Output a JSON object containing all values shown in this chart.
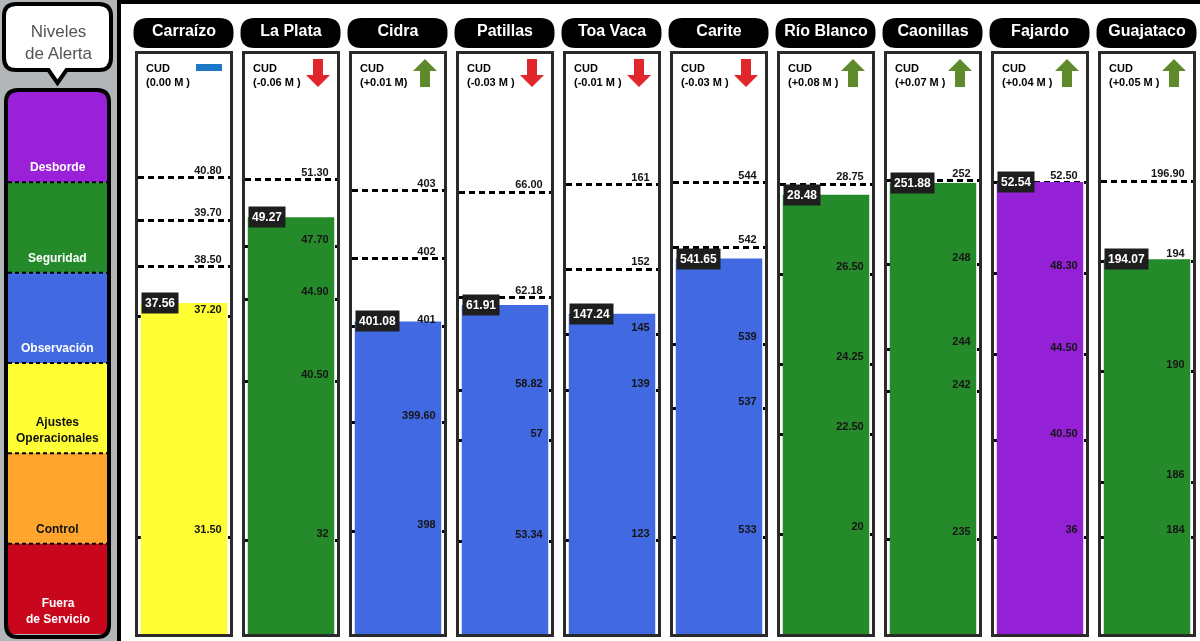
{
  "chart_data": [
    {
      "type": "other",
      "title": "Niveles\nde Alerta",
      "categories": [
        "Desborde",
        "Seguridad",
        "Observación",
        "Ajustes\nOperacionales",
        "Control",
        "Fuera\nde Servicio"
      ],
      "colors": [
        "#9b21d8",
        "#258a2a",
        "#4169e1",
        "#ffff33",
        "#ffa42c",
        "#c8061c"
      ]
    },
    {
      "type": "bar",
      "categories": [
        "Carraízo"
      ],
      "values": [
        37.56
      ],
      "colors": [
        "#ffff33"
      ],
      "data_labels": true,
      "grid": "y",
      "ylim": [
        29,
        44
      ],
      "yticks": [
        {
          "value": 31.5,
          "label": "31.50"
        },
        {
          "value": 37.2,
          "label": "37.20"
        },
        {
          "value": 38.5,
          "label": "38.50"
        },
        {
          "value": 39.7,
          "label": "39.70"
        },
        {
          "value": 40.8,
          "label": "40.80"
        }
      ],
      "annotations": [
        "CUD\n(0.00 M )"
      ]
    },
    {
      "type": "bar",
      "categories": [
        "La Plata"
      ],
      "values": [
        49.27
      ],
      "colors": [
        "#258a2a"
      ],
      "data_labels": true,
      "grid": "y",
      "ylim": [
        27,
        58
      ],
      "yticks": [
        32,
        {
          "value": 40.5,
          "label": "40.50"
        },
        {
          "value": 44.9,
          "label": "44.90"
        },
        {
          "value": 47.7,
          "label": "47.70"
        },
        {
          "value": 51.3,
          "label": "51.30"
        }
      ],
      "annotations": [
        "CUD\n(-0.06 M )"
      ]
    },
    {
      "type": "bar",
      "categories": [
        "Cidra"
      ],
      "values": [
        401.08
      ],
      "colors": [
        "#4169e1"
      ],
      "data_labels": true,
      "grid": "y",
      "ylim": [
        396.5,
        405
      ],
      "yticks": [
        398,
        {
          "value": 399.6,
          "label": "399.60"
        },
        401,
        402,
        403
      ],
      "annotations": [
        "CUD\n(+0.01 M)"
      ]
    },
    {
      "type": "bar",
      "categories": [
        "Patillas"
      ],
      "values": [
        61.91
      ],
      "colors": [
        "#4169e1"
      ],
      "data_labels": true,
      "grid": "y",
      "ylim": [
        50,
        71
      ],
      "yticks": [
        53.34,
        57,
        58.82,
        62.18,
        {
          "value": 66,
          "label": "66.00"
        }
      ],
      "annotations": [
        "CUD\n(-0.03 M )"
      ]
    },
    {
      "type": "bar",
      "categories": [
        "Toa Vaca"
      ],
      "values": [
        147.24
      ],
      "colors": [
        "#4169e1"
      ],
      "data_labels": true,
      "grid": "y",
      "ylim": [
        113,
        175
      ],
      "yticks": [
        123,
        139,
        145,
        152,
        161
      ],
      "annotations": [
        "CUD\n(-0.01 M )"
      ]
    },
    {
      "type": "bar",
      "categories": [
        "Carite"
      ],
      "values": [
        541.65
      ],
      "colors": [
        "#4169e1"
      ],
      "data_labels": true,
      "grid": "y",
      "ylim": [
        530,
        548
      ],
      "yticks": [
        533,
        537,
        539,
        542,
        544
      ],
      "annotations": [
        "CUD\n(-0.03 M )"
      ]
    },
    {
      "type": "bar",
      "categories": [
        "Río Blanco"
      ],
      "values": [
        28.48
      ],
      "colors": [
        "#258a2a"
      ],
      "data_labels": true,
      "grid": "y",
      "ylim": [
        17.5,
        32
      ],
      "yticks": [
        20,
        {
          "value": 22.5,
          "label": "22.50"
        },
        24.25,
        {
          "value": 26.5,
          "label": "26.50"
        },
        28.75
      ],
      "annotations": [
        "CUD\n(+0.08 M )"
      ]
    },
    {
      "type": "bar",
      "categories": [
        "Caonillas"
      ],
      "values": [
        251.88
      ],
      "colors": [
        "#258a2a"
      ],
      "data_labels": true,
      "grid": "y",
      "ylim": [
        230.5,
        258
      ],
      "yticks": [
        235,
        242,
        244,
        248,
        252
      ],
      "annotations": [
        "CUD\n(+0.07 M )"
      ]
    },
    {
      "type": "bar",
      "categories": [
        "Fajardo"
      ],
      "values": [
        52.54
      ],
      "colors": [
        "#9421d6"
      ],
      "data_labels": true,
      "grid": "y",
      "ylim": [
        31.5,
        58.5
      ],
      "yticks": [
        36,
        {
          "value": 40.5,
          "label": "40.50"
        },
        {
          "value": 44.5,
          "label": "44.50"
        },
        {
          "value": 48.3,
          "label": "48.30"
        },
        {
          "value": 52.5,
          "label": "52.50"
        }
      ],
      "annotations": [
        "CUD\n(+0.04 M )"
      ]
    },
    {
      "type": "bar",
      "categories": [
        "Guajataco"
      ],
      "values": [
        194.07
      ],
      "colors": [
        "#258a2a"
      ],
      "data_labels": true,
      "grid": "y",
      "ylim": [
        180.5,
        201.5
      ],
      "yticks": [
        184,
        186,
        190,
        194,
        {
          "value": 196.9,
          "label": "196.90"
        }
      ],
      "annotations": [
        "CUD\n(+0.05 M )"
      ]
    }
  ]
}
